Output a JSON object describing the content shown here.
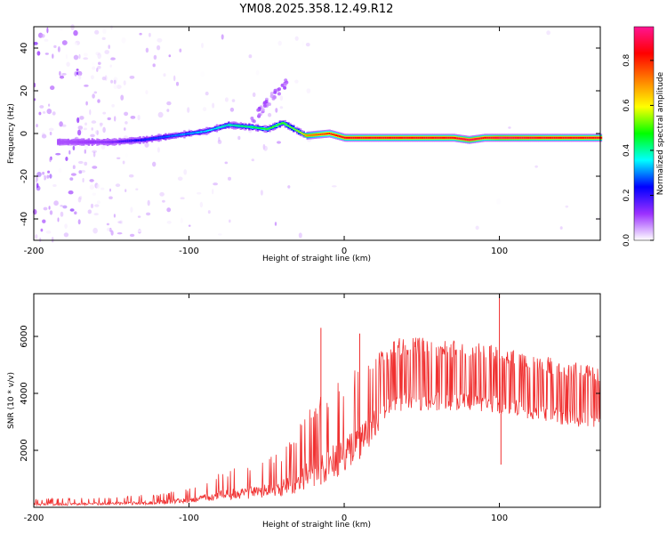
{
  "title": "YM08.2025.358.12.49.R12",
  "chart_data": [
    {
      "type": "heatmap",
      "xlabel": "Height of straight line (km)",
      "ylabel": "Frequency (Hz)",
      "xlim": [
        -200,
        165
      ],
      "ylim": [
        -50,
        50
      ],
      "xticks": [
        -200,
        -100,
        0,
        100
      ],
      "yticks": [
        -40,
        -20,
        0,
        20,
        40
      ],
      "colorbar": {
        "label": "Normalized spectral amplitude",
        "range": [
          0,
          0.95
        ],
        "ticks": [
          "0.0",
          "0.2",
          "0.4",
          "0.6",
          "0.8"
        ],
        "colors": [
          "#ffffff",
          "#9b30ff",
          "#0000ff",
          "#00ffff",
          "#00ff00",
          "#ffff00",
          "#ff8000",
          "#ff0000",
          "#ff1493"
        ]
      },
      "ridge": {
        "x": [
          -180,
          -150,
          -130,
          -110,
          -90,
          -75,
          -60,
          -50,
          -40,
          -30,
          -25,
          -10,
          0,
          20,
          50,
          70,
          80,
          90,
          100,
          130,
          165
        ],
        "frequency": [
          -4,
          -4,
          -3,
          -1,
          1,
          4,
          3,
          2,
          5,
          1,
          -1,
          0,
          -2,
          -2,
          -2,
          -2,
          -3,
          -2,
          -2,
          -2,
          -2
        ],
        "amplitude": [
          0.1,
          0.15,
          0.25,
          0.3,
          0.35,
          0.4,
          0.45,
          0.5,
          0.5,
          0.55,
          0.7,
          0.8,
          0.85,
          0.85,
          0.85,
          0.85,
          0.9,
          0.85,
          0.9,
          0.85,
          0.85
        ]
      }
    },
    {
      "type": "line",
      "xlabel": "Height of straight line (km)",
      "ylabel": "SNR (10 * v/v)",
      "xlim": [
        -200,
        165
      ],
      "ylim": [
        0,
        7500
      ],
      "xticks": [
        -200,
        -100,
        0,
        100
      ],
      "yticks": [
        2000,
        4000,
        6000
      ],
      "color": "#f03030",
      "series": [
        {
          "x": [
            -200,
            -150,
            -120,
            -100,
            -80,
            -60,
            -40,
            -30,
            -20,
            -10,
            0,
            10,
            20,
            25,
            30,
            40,
            60,
            80,
            100,
            120,
            140,
            165
          ],
          "min": [
            60,
            80,
            100,
            150,
            250,
            300,
            400,
            500,
            700,
            900,
            1200,
            1700,
            2400,
            3000,
            3300,
            3400,
            3400,
            3400,
            3300,
            3100,
            2900,
            2700
          ],
          "max": [
            300,
            350,
            500,
            700,
            1200,
            1600,
            2000,
            2800,
            3800,
            4300,
            4700,
            4900,
            5400,
            5700,
            5900,
            6000,
            5900,
            5800,
            5700,
            5400,
            5200,
            4900
          ]
        }
      ],
      "spikes": [
        {
          "x": -15,
          "y": 6300
        },
        {
          "x": 10,
          "y": 6100
        },
        {
          "x": 100,
          "y": 7500
        },
        {
          "x": 101,
          "y": 1500
        }
      ]
    }
  ]
}
